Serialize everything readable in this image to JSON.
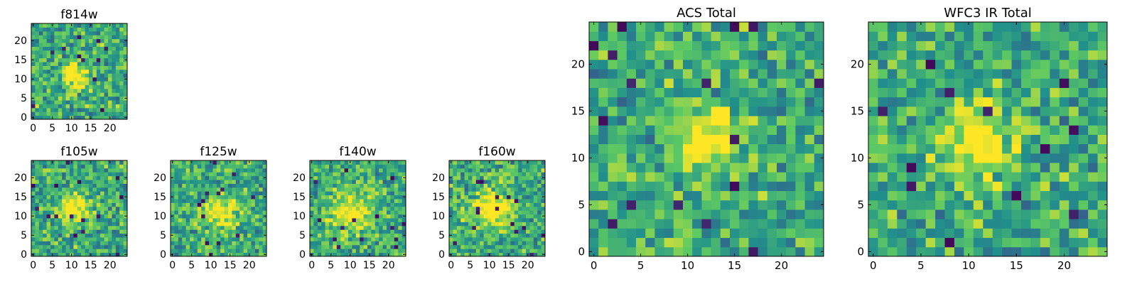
{
  "colormap": {
    "name": "viridis",
    "stops": [
      "#440154",
      "#3b528b",
      "#21908c",
      "#5dc963",
      "#fde725"
    ]
  },
  "chart_data": [
    {
      "type": "heatmap",
      "title": "f814w",
      "grid_size": 25,
      "xticks": [
        0,
        5,
        10,
        15,
        20
      ],
      "yticks": [
        0,
        5,
        10,
        15,
        20
      ],
      "xlim": [
        -0.5,
        24.5
      ],
      "ylim": [
        -0.5,
        24.5
      ],
      "origin": "lower",
      "source_center": [
        11,
        11
      ],
      "source_sigma": 2.5,
      "source_amp": 0.45,
      "noise_seed": 11
    },
    {
      "type": "heatmap",
      "title": "f105w",
      "grid_size": 25,
      "xticks": [
        0,
        5,
        10,
        15,
        20
      ],
      "yticks": [
        0,
        5,
        10,
        15,
        20
      ],
      "xlim": [
        -0.5,
        24.5
      ],
      "ylim": [
        -0.5,
        24.5
      ],
      "origin": "lower",
      "source_center": [
        11,
        12
      ],
      "source_sigma": 2.8,
      "source_amp": 0.45,
      "noise_seed": 23
    },
    {
      "type": "heatmap",
      "title": "f125w",
      "grid_size": 25,
      "xticks": [
        0,
        5,
        10,
        15,
        20
      ],
      "yticks": [
        0,
        5,
        10,
        15,
        20
      ],
      "xlim": [
        -0.5,
        24.5
      ],
      "ylim": [
        -0.5,
        24.5
      ],
      "origin": "lower",
      "source_center": [
        13,
        11
      ],
      "source_sigma": 3.0,
      "source_amp": 0.4,
      "noise_seed": 37
    },
    {
      "type": "heatmap",
      "title": "f140w",
      "grid_size": 25,
      "xticks": [
        0,
        5,
        10,
        15,
        20
      ],
      "yticks": [
        0,
        5,
        10,
        15,
        20
      ],
      "xlim": [
        -0.5,
        24.5
      ],
      "ylim": [
        -0.5,
        24.5
      ],
      "origin": "lower",
      "source_center": [
        10,
        11
      ],
      "source_sigma": 3.5,
      "source_amp": 0.45,
      "noise_seed": 53
    },
    {
      "type": "heatmap",
      "title": "f160w",
      "grid_size": 25,
      "xticks": [
        0,
        5,
        10,
        15,
        20
      ],
      "yticks": [
        0,
        5,
        10,
        15,
        20
      ],
      "xlim": [
        -0.5,
        24.5
      ],
      "ylim": [
        -0.5,
        24.5
      ],
      "origin": "lower",
      "source_center": [
        11,
        12
      ],
      "source_sigma": 3.5,
      "source_amp": 0.45,
      "noise_seed": 71
    },
    {
      "type": "heatmap",
      "title": "ACS Total",
      "grid_size": 25,
      "xticks": [
        0,
        5,
        10,
        15,
        20
      ],
      "yticks": [
        0,
        5,
        10,
        15,
        20
      ],
      "xlim": [
        -0.5,
        24.5
      ],
      "ylim": [
        -0.5,
        24.5
      ],
      "origin": "lower",
      "source_center": [
        12,
        12
      ],
      "source_sigma": 2.3,
      "source_amp": 0.5,
      "noise_seed": 89
    },
    {
      "type": "heatmap",
      "title": "WFC3 IR Total",
      "grid_size": 25,
      "xticks": [
        0,
        5,
        10,
        15,
        20
      ],
      "yticks": [
        0,
        5,
        10,
        15,
        20
      ],
      "xlim": [
        -0.5,
        24.5
      ],
      "ylim": [
        -0.5,
        24.5
      ],
      "origin": "lower",
      "source_center": [
        11,
        12
      ],
      "source_sigma": 2.8,
      "source_amp": 0.45,
      "noise_seed": 101
    }
  ]
}
